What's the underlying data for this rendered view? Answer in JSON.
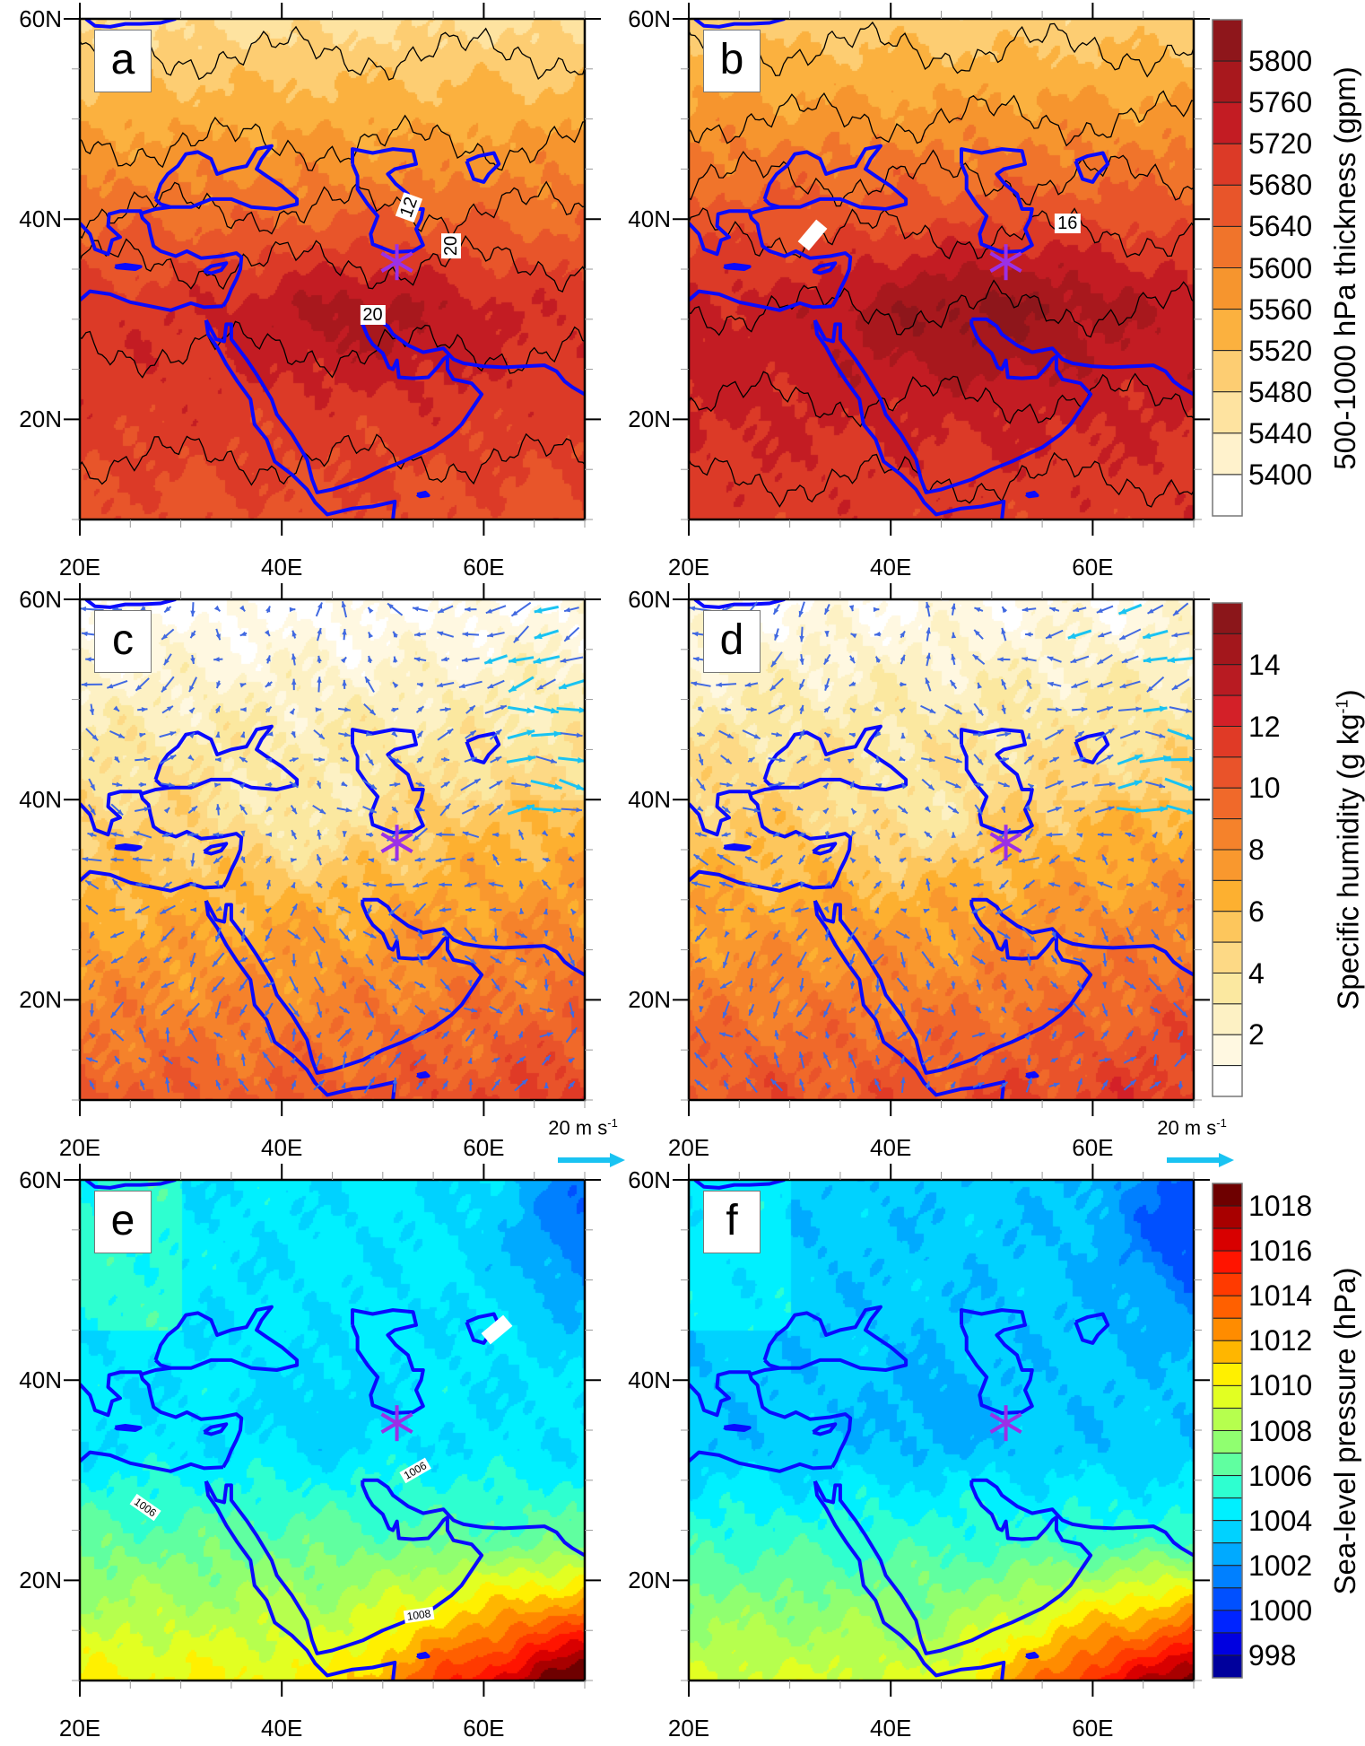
{
  "panels": [
    {
      "letter": "a",
      "field": "thickness",
      "contour_labels": [
        "12",
        "20",
        "20"
      ]
    },
    {
      "letter": "b",
      "field": "thickness",
      "contour_labels": [
        "16",
        ""
      ]
    },
    {
      "letter": "c",
      "field": "humidity",
      "contour_labels": []
    },
    {
      "letter": "d",
      "field": "humidity",
      "contour_labels": []
    },
    {
      "letter": "e",
      "field": "slp",
      "contour_labels": [
        "1006",
        "1006",
        "1008",
        ""
      ]
    },
    {
      "letter": "f",
      "field": "slp",
      "contour_labels": []
    }
  ],
  "axes": {
    "lat_labels": [
      "60N",
      "40N",
      "20N"
    ],
    "lon_labels": [
      "20E",
      "40E",
      "60E"
    ],
    "lon_range": [
      20,
      70
    ],
    "lat_range": [
      10,
      60
    ]
  },
  "colorbars": [
    {
      "title": "500-1000 hPa thickness (gpm)",
      "ticks": [
        "5800",
        "5760",
        "5720",
        "5680",
        "5640",
        "5600",
        "5560",
        "5520",
        "5480",
        "5440",
        "5400"
      ],
      "colors": [
        "#8e161b",
        "#a8181d",
        "#c31c23",
        "#dc3a27",
        "#e8552a",
        "#f0742b",
        "#f6952e",
        "#fbb13f",
        "#fdcd72",
        "#fee3a0",
        "#fff2cc",
        "#ffffff"
      ]
    },
    {
      "title": "Specific humidity (g kg",
      "title_sup": "-1",
      "title_end": ")",
      "ticks": [
        "14",
        "12",
        "10",
        "8",
        "6",
        "4",
        "2"
      ],
      "colors": [
        "#8b161a",
        "#a3171c",
        "#b81b22",
        "#d32028",
        "#e03a26",
        "#e9532a",
        "#f0692a",
        "#f5822b",
        "#f9982e",
        "#fdb030",
        "#fdc65c",
        "#fdd985",
        "#fbe8a0",
        "#fdf1c4",
        "#fff8e1",
        "#ffffff"
      ]
    },
    {
      "title": "Sea-level pressure (hPa)",
      "ticks": [
        "1018",
        "1016",
        "1014",
        "1012",
        "1010",
        "1008",
        "1006",
        "1004",
        "1002",
        "1000",
        "998"
      ],
      "colors": [
        "#6e0000",
        "#a80000",
        "#d80000",
        "#ff1400",
        "#ff3a00",
        "#ff6000",
        "#ff8c00",
        "#ffb600",
        "#fff000",
        "#e2ff22",
        "#b6ff4e",
        "#90ff70",
        "#60ffa0",
        "#2effd0",
        "#00f0ff",
        "#00d2ff",
        "#00aaff",
        "#0080ff",
        "#0050ff",
        "#0024ff",
        "#0000e0",
        "#00009c"
      ]
    }
  ],
  "reference_vector": {
    "label": "20 m s",
    "label_sup": "-1"
  },
  "colors": {
    "coastline": "#0a0aff",
    "marker": "#9b30e6",
    "vector": "#4169e1",
    "vector_strong": "#19c3f2",
    "contour": "#000000"
  }
}
